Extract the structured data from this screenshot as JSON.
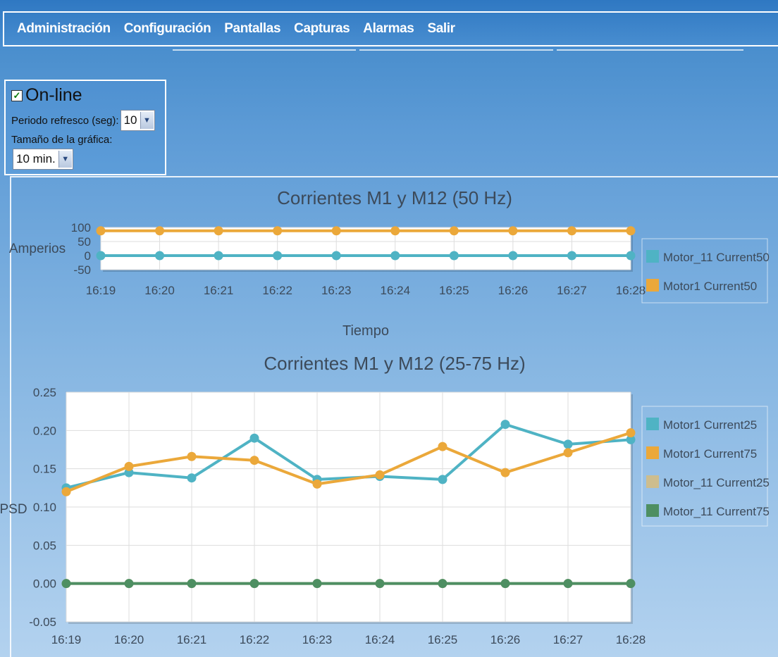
{
  "menu": {
    "items": [
      "Administración",
      "Configuración",
      "Pantallas",
      "Capturas",
      "Alarmas",
      "Salir"
    ]
  },
  "controls": {
    "online_label": "On-line",
    "online_checked": true,
    "refresh_label": "Periodo refresco (seg):",
    "refresh_value": "10",
    "size_label": "Tamaño de la gráfica:",
    "size_value": "10 min."
  },
  "colors": {
    "teal": "#4fb3c4",
    "orange": "#eba83a",
    "tan": "#cdbd8e",
    "green": "#4e8f62"
  },
  "chart_data": [
    {
      "type": "line",
      "title": "Corrientes M1 y M12 (50 Hz)",
      "xlabel": "Tiempo",
      "ylabel": "Amperios",
      "x": [
        "16:19",
        "16:20",
        "16:21",
        "16:22",
        "16:23",
        "16:24",
        "16:25",
        "16:26",
        "16:27",
        "16:28"
      ],
      "ylim": [
        -50,
        100
      ],
      "yticks": [
        "100",
        "50",
        "0",
        "-50"
      ],
      "legend_position": "right",
      "grid": true,
      "series": [
        {
          "name": "Motor_11 Current50",
          "values": [
            0,
            0,
            0,
            0,
            0,
            0,
            0,
            0,
            0,
            0
          ]
        },
        {
          "name": "Motor1 Current50",
          "values": [
            88,
            88,
            88,
            88,
            88,
            88,
            88,
            88,
            88,
            88
          ]
        }
      ]
    },
    {
      "type": "line",
      "title": "Corrientes M1 y M12 (25-75 Hz)",
      "xlabel": "",
      "ylabel": "PSD",
      "x": [
        "16:19",
        "16:20",
        "16:21",
        "16:22",
        "16:23",
        "16:24",
        "16:25",
        "16:26",
        "16:27",
        "16:28"
      ],
      "ylim": [
        -0.05,
        0.25
      ],
      "yticks": [
        "0.25",
        "0.20",
        "0.15",
        "0.10",
        "0.05",
        "0.00",
        "-0.05"
      ],
      "legend_position": "right",
      "grid": true,
      "series": [
        {
          "name": "Motor1 Current25",
          "values": [
            0.125,
            0.145,
            0.138,
            0.19,
            0.136,
            0.14,
            0.136,
            0.208,
            0.182,
            0.188
          ]
        },
        {
          "name": "Motor1 Current75",
          "values": [
            0.12,
            0.153,
            0.166,
            0.161,
            0.13,
            0.142,
            0.179,
            0.145,
            0.171,
            0.197
          ]
        },
        {
          "name": "Motor_11 Current25",
          "values": [
            0,
            0,
            0,
            0,
            0,
            0,
            0,
            0,
            0,
            0
          ]
        },
        {
          "name": "Motor_11 Current75",
          "values": [
            0,
            0,
            0,
            0,
            0,
            0,
            0,
            0,
            0,
            0
          ]
        }
      ]
    }
  ]
}
